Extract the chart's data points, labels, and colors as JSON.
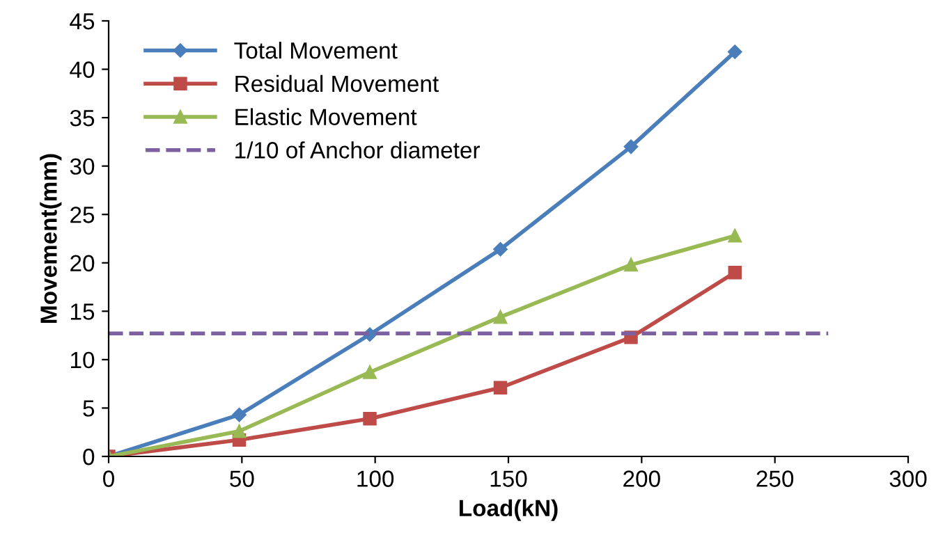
{
  "chart_data": {
    "type": "line",
    "xlabel": "Load(kN)",
    "ylabel": "Movement(mm)",
    "xlim": [
      0,
      300
    ],
    "xticks": [
      0,
      50,
      100,
      150,
      200,
      250,
      300
    ],
    "ylim": [
      0,
      45
    ],
    "yticks": [
      0,
      5,
      10,
      15,
      20,
      25,
      30,
      35,
      40,
      45
    ],
    "grid": false,
    "legend": "top left",
    "series": [
      {
        "name": "Total Movement",
        "color": "#4a7ebb",
        "marker": "diamond",
        "line_style": "solid",
        "x": [
          0,
          49,
          98,
          147,
          196,
          235
        ],
        "values": [
          0,
          4.3,
          12.6,
          21.4,
          32,
          41.8
        ]
      },
      {
        "name": "Residual Movement",
        "color": "#be4b48",
        "marker": "square",
        "line_style": "solid",
        "x": [
          0,
          49,
          98,
          147,
          196,
          235
        ],
        "values": [
          0,
          1.7,
          3.9,
          7.1,
          12.3,
          19
        ]
      },
      {
        "name": "Elastic Movement",
        "color": "#98b954",
        "marker": "triangle",
        "line_style": "solid",
        "x": [
          0,
          49,
          98,
          147,
          196,
          235
        ],
        "values": [
          0,
          2.6,
          8.7,
          14.4,
          19.8,
          22.8
        ]
      },
      {
        "name": "1/10 of Anchor diameter",
        "color": "#7d60a0",
        "marker": "none",
        "line_style": "dashed",
        "x": [
          0,
          270
        ],
        "values": [
          12.7,
          12.7
        ]
      }
    ]
  }
}
